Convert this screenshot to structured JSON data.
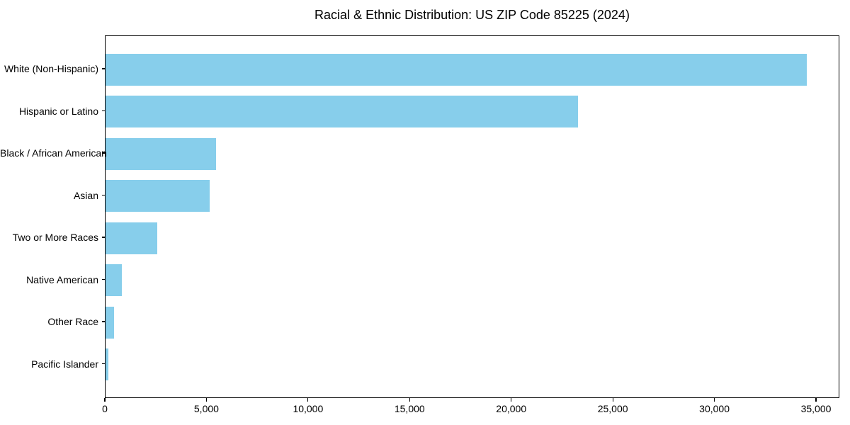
{
  "chart_data": {
    "type": "bar",
    "orientation": "horizontal",
    "title": "Racial & Ethnic Distribution: US ZIP Code 85225 (2024)",
    "categories": [
      "White (Non-Hispanic)",
      "Hispanic or Latino",
      "Black / African American",
      "Asian",
      "Two or More Races",
      "Native American",
      "Other Race",
      "Pacific Islander"
    ],
    "values": [
      34500,
      23250,
      5450,
      5130,
      2540,
      790,
      420,
      150
    ],
    "bar_color": "#87CEEB",
    "xlabel": "",
    "ylabel": "",
    "xlim": [
      0,
      36150
    ],
    "xticks": [
      0,
      5000,
      10000,
      15000,
      20000,
      25000,
      30000,
      35000
    ],
    "xtick_labels": [
      "0",
      "5,000",
      "10,000",
      "15,000",
      "20,000",
      "25,000",
      "30,000",
      "35,000"
    ],
    "grid": false,
    "legend": "none",
    "frame_color": "#000000",
    "background_color": "#ffffff"
  }
}
